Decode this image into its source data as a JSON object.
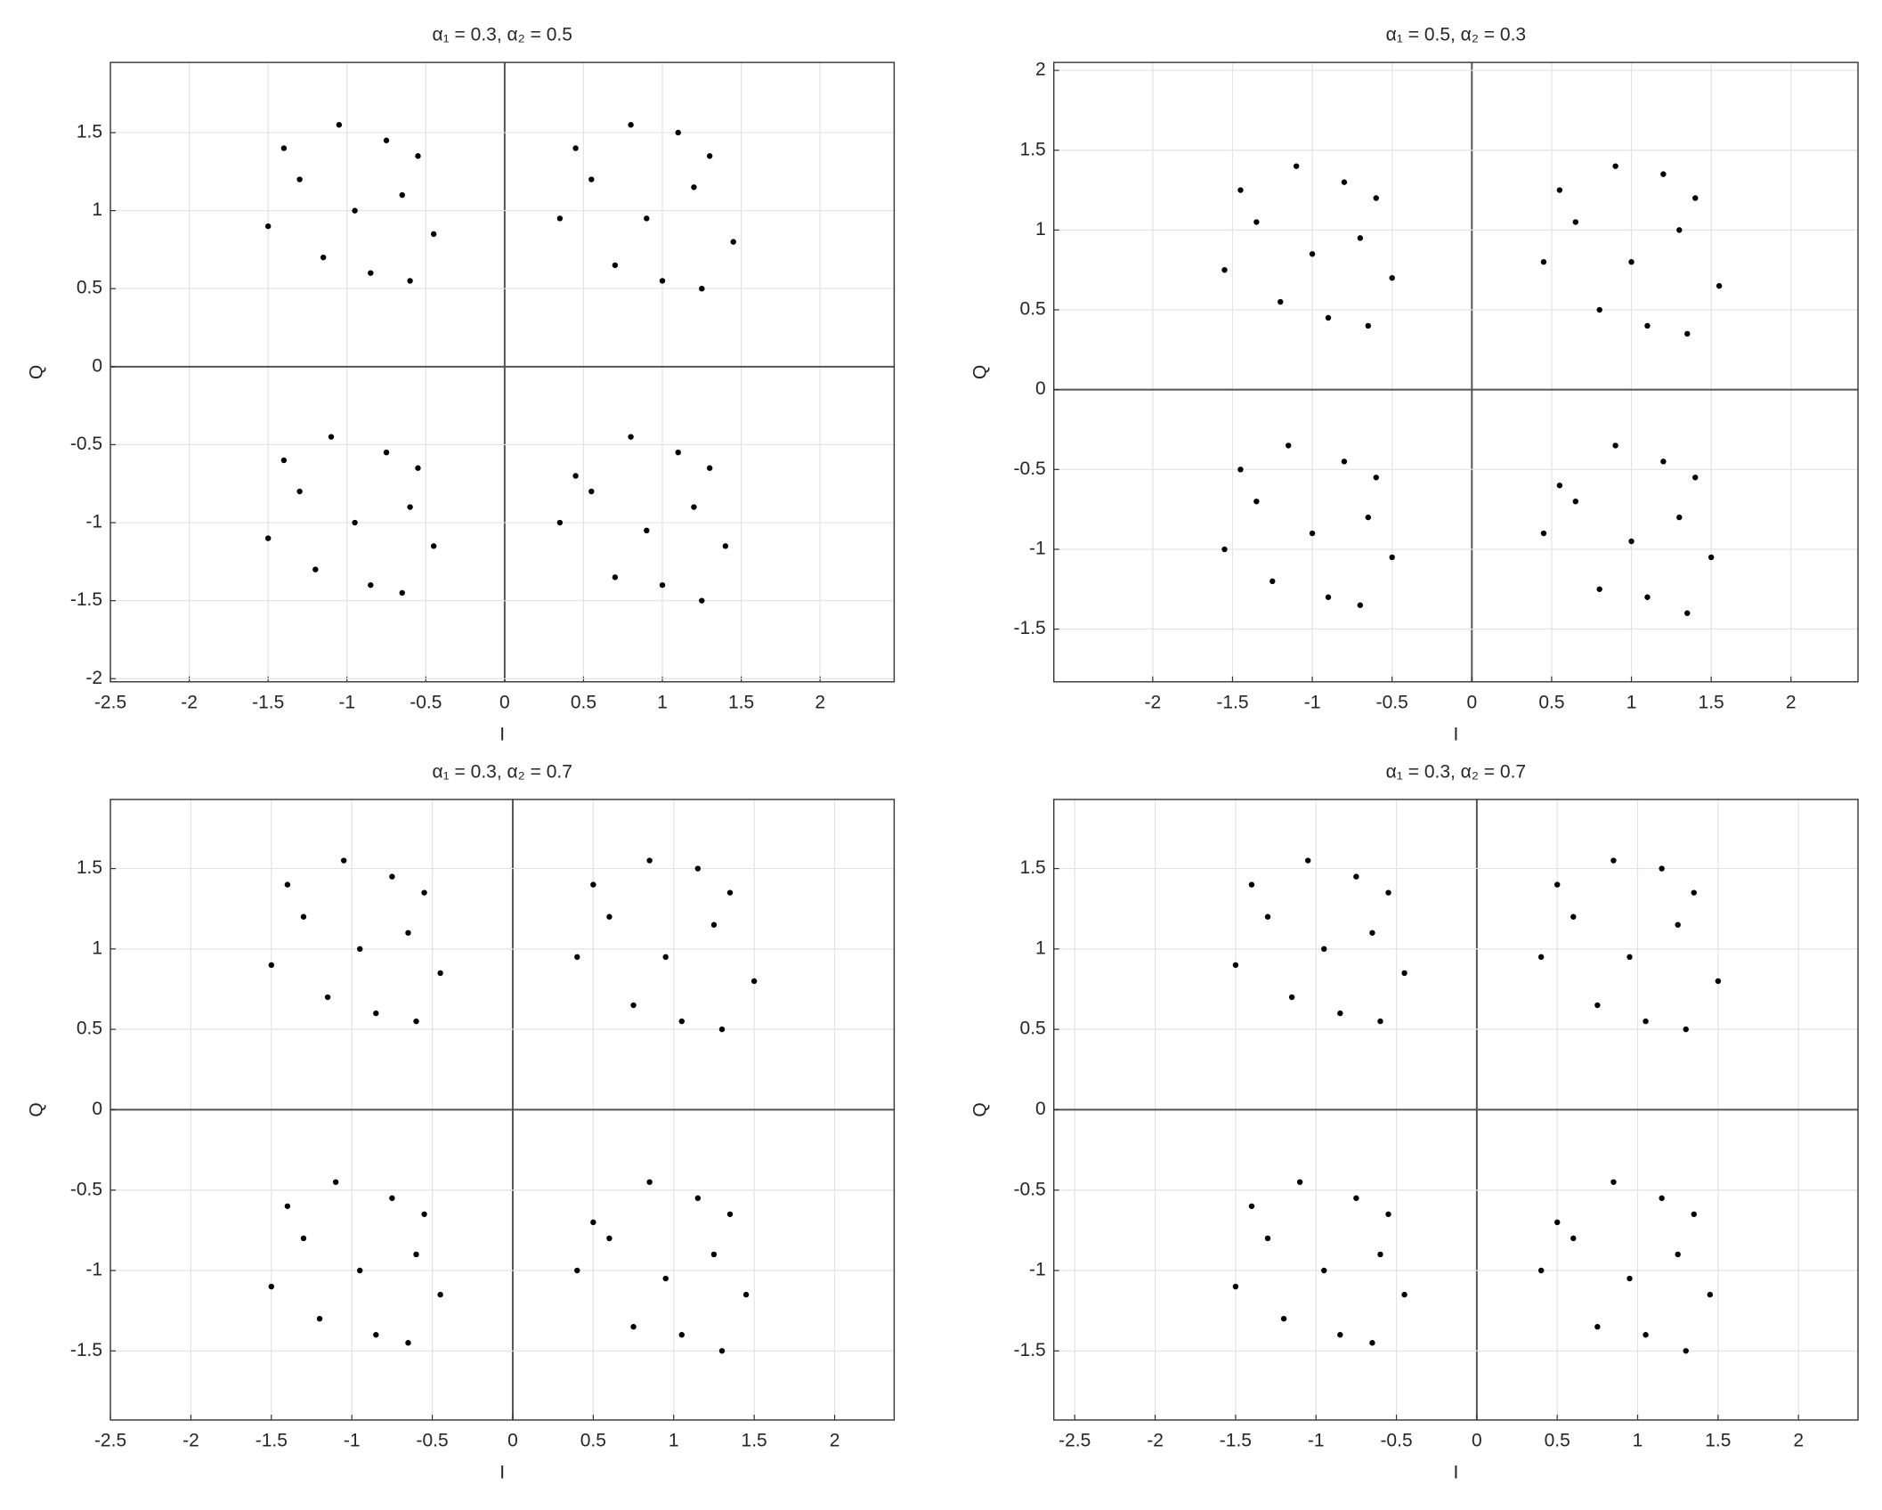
{
  "chart_data": [
    {
      "type": "scatter",
      "title": "α₁ = 0.3, α₂ = 0.5",
      "xlabel": "I",
      "ylabel": "Q",
      "grid": true,
      "xlim": [
        -2.5,
        2.47
      ],
      "ylim": [
        -2.02,
        1.95
      ],
      "xticks": [
        -2.5,
        -2,
        -1.5,
        -1,
        -0.5,
        0,
        0.5,
        1,
        1.5,
        2
      ],
      "yticks": [
        -2,
        -1.5,
        -1,
        -0.5,
        0,
        0.5,
        1,
        1.5
      ],
      "series": [
        {
          "color": "#000000",
          "x": [
            -0.95,
            -0.65,
            -1.3,
            -0.85,
            -1.15,
            -0.45,
            -1.5,
            -0.75,
            -1.05,
            -0.55,
            -1.4,
            -0.6,
            0.9,
            1.2,
            0.55,
            1.0,
            0.7,
            1.45,
            0.35,
            1.1,
            0.8,
            1.3,
            0.45,
            1.25,
            -0.95,
            -0.6,
            -1.3,
            -0.85,
            -1.2,
            -0.45,
            -1.5,
            -0.75,
            -1.1,
            -0.55,
            -1.4,
            -0.65,
            0.9,
            1.2,
            0.55,
            1.0,
            0.7,
            1.4,
            0.35,
            1.1,
            0.8,
            1.3,
            0.45,
            1.25
          ],
          "y": [
            1,
            1.1,
            1.2,
            0.6,
            0.7,
            0.85,
            0.9,
            1.45,
            1.55,
            1.35,
            1.4,
            0.55,
            0.95,
            1.15,
            1.2,
            0.55,
            0.65,
            0.8,
            0.95,
            1.5,
            1.55,
            1.35,
            1.4,
            0.5,
            -1,
            -0.9,
            -0.8,
            -1.4,
            -1.3,
            -1.15,
            -1.1,
            -0.55,
            -0.45,
            -0.65,
            -0.6,
            -1.45,
            -1.05,
            -0.9,
            -0.8,
            -1.4,
            -1.35,
            -1.15,
            -1,
            -0.55,
            -0.45,
            -0.65,
            -0.7,
            -1.5
          ]
        }
      ]
    },
    {
      "type": "scatter",
      "title": "α₁ = 0.5, α₂ = 0.3",
      "xlabel": "I",
      "ylabel": "Q",
      "grid": true,
      "xlim": [
        -2.62,
        2.42
      ],
      "ylim": [
        -1.83,
        2.05
      ],
      "xticks": [
        -2,
        -1.5,
        -1,
        -0.5,
        0,
        0.5,
        1,
        1.5,
        2
      ],
      "yticks": [
        -1.5,
        -1,
        -0.5,
        0,
        0.5,
        1,
        1.5,
        2
      ],
      "series": [
        {
          "color": "#000000",
          "x": [
            -1,
            -0.7,
            -1.35,
            -0.9,
            -1.2,
            -0.5,
            -1.55,
            -0.8,
            -1.1,
            -0.6,
            -1.45,
            -0.65,
            1,
            1.3,
            0.65,
            1.1,
            0.8,
            1.55,
            0.45,
            1.2,
            0.9,
            1.4,
            0.55,
            1.35,
            -1,
            -0.65,
            -1.35,
            -0.9,
            -1.25,
            -0.5,
            -1.55,
            -0.8,
            -1.15,
            -0.6,
            -1.45,
            -0.7,
            1,
            1.3,
            0.65,
            1.1,
            0.8,
            1.5,
            0.45,
            1.2,
            0.9,
            1.4,
            0.55,
            1.35
          ],
          "y": [
            0.85,
            0.95,
            1.05,
            0.45,
            0.55,
            0.7,
            0.75,
            1.3,
            1.4,
            1.2,
            1.25,
            0.4,
            0.8,
            1,
            1.05,
            0.4,
            0.5,
            0.65,
            0.8,
            1.35,
            1.4,
            1.2,
            1.25,
            0.35,
            -0.9,
            -0.8,
            -0.7,
            -1.3,
            -1.2,
            -1.05,
            -1,
            -0.45,
            -0.35,
            -0.55,
            -0.5,
            -1.35,
            -0.95,
            -0.8,
            -0.7,
            -1.3,
            -1.25,
            -1.05,
            -0.9,
            -0.45,
            -0.35,
            -0.55,
            -0.6,
            -1.4
          ]
        }
      ]
    },
    {
      "type": "scatter",
      "title": "α₁ = 0.3, α₂ = 0.7",
      "xlabel": "I",
      "ylabel": "Q",
      "grid": true,
      "xlim": [
        -2.5,
        2.37
      ],
      "ylim": [
        -1.93,
        1.93
      ],
      "xticks": [
        -2.5,
        -2,
        -1.5,
        -1,
        -0.5,
        0,
        0.5,
        1,
        1.5,
        2
      ],
      "yticks": [
        -1.5,
        -1,
        -0.5,
        0,
        0.5,
        1,
        1.5
      ],
      "series": [
        {
          "color": "#000000",
          "x": [
            -0.95,
            -0.65,
            -1.3,
            -0.85,
            -1.15,
            -0.45,
            -1.5,
            -0.75,
            -1.05,
            -0.55,
            -1.4,
            -0.6,
            0.95,
            1.25,
            0.6,
            1.05,
            0.75,
            1.5,
            0.4,
            1.15,
            0.85,
            1.35,
            0.5,
            1.3,
            -0.95,
            -0.6,
            -1.3,
            -0.85,
            -1.2,
            -0.45,
            -1.5,
            -0.75,
            -1.1,
            -0.55,
            -1.4,
            -0.65,
            0.95,
            1.25,
            0.6,
            1.05,
            0.75,
            1.45,
            0.4,
            1.15,
            0.85,
            1.35,
            0.5,
            1.3
          ],
          "y": [
            1,
            1.1,
            1.2,
            0.6,
            0.7,
            0.85,
            0.9,
            1.45,
            1.55,
            1.35,
            1.4,
            0.55,
            0.95,
            1.15,
            1.2,
            0.55,
            0.65,
            0.8,
            0.95,
            1.5,
            1.55,
            1.35,
            1.4,
            0.5,
            -1,
            -0.9,
            -0.8,
            -1.4,
            -1.3,
            -1.15,
            -1.1,
            -0.55,
            -0.45,
            -0.65,
            -0.6,
            -1.45,
            -1.05,
            -0.9,
            -0.8,
            -1.4,
            -1.35,
            -1.15,
            -1,
            -0.55,
            -0.45,
            -0.65,
            -0.7,
            -1.5
          ]
        }
      ]
    },
    {
      "type": "scatter",
      "title": "α₁ = 0.3, α₂ = 0.7",
      "xlabel": "I",
      "ylabel": "Q",
      "grid": true,
      "xlim": [
        -2.63,
        2.37
      ],
      "ylim": [
        -1.93,
        1.93
      ],
      "xticks": [
        -2.5,
        -2,
        -1.5,
        -1,
        -0.5,
        0,
        0.5,
        1,
        1.5,
        2
      ],
      "yticks": [
        -1.5,
        -1,
        -0.5,
        0,
        0.5,
        1,
        1.5
      ],
      "series": [
        {
          "color": "#000000",
          "x": [
            -0.95,
            -0.65,
            -1.3,
            -0.85,
            -1.15,
            -0.45,
            -1.5,
            -0.75,
            -1.05,
            -0.55,
            -1.4,
            -0.6,
            0.95,
            1.25,
            0.6,
            1.05,
            0.75,
            1.5,
            0.4,
            1.15,
            0.85,
            1.35,
            0.5,
            1.3,
            -0.95,
            -0.6,
            -1.3,
            -0.85,
            -1.2,
            -0.45,
            -1.5,
            -0.75,
            -1.1,
            -0.55,
            -1.4,
            -0.65,
            0.95,
            1.25,
            0.6,
            1.05,
            0.75,
            1.45,
            0.4,
            1.15,
            0.85,
            1.35,
            0.5,
            1.3
          ],
          "y": [
            1,
            1.1,
            1.2,
            0.6,
            0.7,
            0.85,
            0.9,
            1.45,
            1.55,
            1.35,
            1.4,
            0.55,
            0.95,
            1.15,
            1.2,
            0.55,
            0.65,
            0.8,
            0.95,
            1.5,
            1.55,
            1.35,
            1.4,
            0.5,
            -1,
            -0.9,
            -0.8,
            -1.4,
            -1.3,
            -1.15,
            -1.1,
            -0.55,
            -0.45,
            -0.65,
            -0.6,
            -1.45,
            -1.05,
            -0.9,
            -0.8,
            -1.4,
            -1.35,
            -1.15,
            -1,
            -0.55,
            -0.45,
            -0.65,
            -0.7,
            -1.5
          ]
        }
      ]
    }
  ]
}
